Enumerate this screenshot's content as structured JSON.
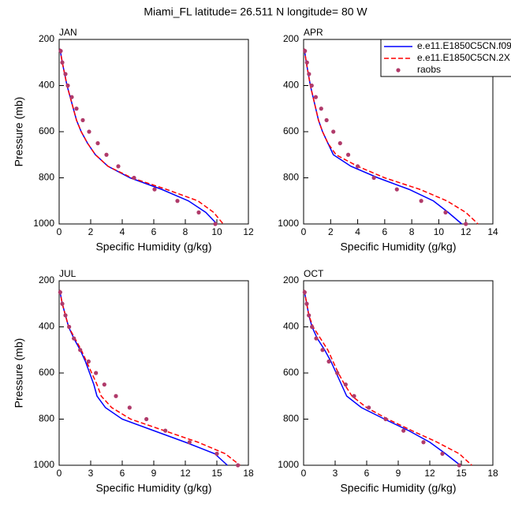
{
  "title": "Miami_FL  latitude= 26.511 N longitude= 80 W",
  "chart_data": [
    {
      "type": "line",
      "title": "JAN",
      "xlabel": "Specific Humidity (g/kg)",
      "ylabel": "Pressure (mb)",
      "xlim": [
        0,
        12
      ],
      "xticks": [
        0,
        2,
        4,
        6,
        8,
        10,
        12
      ],
      "ylim": [
        200,
        1000
      ],
      "y_reversed": true,
      "yticks": [
        200,
        400,
        600,
        800,
        1000
      ],
      "series": [
        {
          "color": "#0000ff",
          "dash": "solid",
          "marker": false,
          "x": [
            0.05,
            0.2,
            0.35,
            0.5,
            0.7,
            0.9,
            1.1,
            1.4,
            1.8,
            2.3,
            3.1,
            4.5,
            6.5,
            8.2,
            9.3,
            10.0
          ],
          "y": [
            240,
            300,
            350,
            400,
            450,
            500,
            550,
            600,
            650,
            700,
            750,
            800,
            850,
            900,
            950,
            1000
          ]
        },
        {
          "color": "#ff0000",
          "dash": "dashed",
          "marker": false,
          "x": [
            0.05,
            0.2,
            0.35,
            0.5,
            0.7,
            0.9,
            1.1,
            1.4,
            1.8,
            2.3,
            3.1,
            4.6,
            6.8,
            8.8,
            9.8,
            10.4
          ],
          "y": [
            240,
            300,
            350,
            400,
            450,
            500,
            550,
            600,
            650,
            700,
            750,
            800,
            850,
            900,
            950,
            1000
          ]
        },
        {
          "color": "#b03a6a",
          "dash": "none",
          "marker": true,
          "x": [
            0.1,
            0.2,
            0.4,
            0.55,
            0.8,
            1.1,
            1.5,
            1.9,
            2.45,
            3.0,
            3.75,
            4.75,
            6.05,
            7.5,
            8.85,
            9.9
          ],
          "y": [
            250,
            300,
            350,
            400,
            450,
            500,
            550,
            600,
            650,
            700,
            750,
            800,
            850,
            900,
            950,
            1000
          ]
        }
      ]
    },
    {
      "type": "line",
      "title": "APR",
      "xlabel": "Specific Humidity (g/kg)",
      "xlim": [
        0,
        14
      ],
      "xticks": [
        0,
        2,
        4,
        6,
        8,
        10,
        12,
        14
      ],
      "ylim": [
        200,
        1000
      ],
      "y_reversed": true,
      "yticks": [
        200,
        400,
        600,
        800,
        1000
      ],
      "legend": "upper right",
      "series": [
        {
          "name": "e.e11.E1850C5CN.f09",
          "color": "#0000ff",
          "dash": "solid",
          "marker": false,
          "x": [
            0.05,
            0.2,
            0.35,
            0.5,
            0.7,
            0.9,
            1.1,
            1.4,
            1.8,
            2.2,
            3.5,
            5.5,
            7.8,
            9.6,
            10.7,
            11.7
          ],
          "y": [
            240,
            300,
            350,
            400,
            450,
            500,
            550,
            600,
            650,
            700,
            750,
            800,
            850,
            900,
            950,
            1000
          ]
        },
        {
          "name": "e.e11.E1850C5CN.2X",
          "color": "#ff0000",
          "dash": "dashed",
          "marker": false,
          "x": [
            0.05,
            0.2,
            0.35,
            0.5,
            0.7,
            0.9,
            1.1,
            1.4,
            1.8,
            2.4,
            4.0,
            6.0,
            8.6,
            10.6,
            12.0,
            12.9
          ],
          "y": [
            240,
            300,
            350,
            400,
            450,
            500,
            550,
            600,
            650,
            700,
            750,
            800,
            850,
            900,
            950,
            1000
          ]
        },
        {
          "name": "raobs",
          "color": "#b03a6a",
          "dash": "none",
          "marker": true,
          "x": [
            0.1,
            0.25,
            0.4,
            0.6,
            0.9,
            1.3,
            1.7,
            2.2,
            2.7,
            3.3,
            4.0,
            5.2,
            6.9,
            8.7,
            10.5,
            12.0
          ],
          "y": [
            250,
            300,
            350,
            400,
            450,
            500,
            550,
            600,
            650,
            700,
            750,
            800,
            850,
            900,
            950,
            1000
          ]
        }
      ]
    },
    {
      "type": "line",
      "title": "JUL",
      "xlabel": "Specific Humidity (g/kg)",
      "ylabel": "Pressure (mb)",
      "xlim": [
        0,
        18
      ],
      "xticks": [
        0,
        3,
        6,
        9,
        12,
        15,
        18
      ],
      "ylim": [
        200,
        1000
      ],
      "y_reversed": true,
      "yticks": [
        200,
        400,
        600,
        800,
        1000
      ],
      "series": [
        {
          "color": "#0000ff",
          "dash": "solid",
          "marker": false,
          "x": [
            0.05,
            0.3,
            0.6,
            0.9,
            1.4,
            2.0,
            2.5,
            2.9,
            3.3,
            3.6,
            4.4,
            6.0,
            9.0,
            12.0,
            14.8,
            16.0
          ],
          "y": [
            240,
            300,
            350,
            400,
            450,
            500,
            550,
            600,
            650,
            700,
            750,
            800,
            850,
            900,
            950,
            1000
          ]
        },
        {
          "color": "#ff0000",
          "dash": "dashed",
          "marker": false,
          "x": [
            0.05,
            0.3,
            0.6,
            0.9,
            1.5,
            2.1,
            2.6,
            3.1,
            3.6,
            4.0,
            5.0,
            6.8,
            10.0,
            13.2,
            15.8,
            17.2
          ],
          "y": [
            240,
            300,
            350,
            400,
            450,
            500,
            550,
            600,
            650,
            700,
            750,
            800,
            850,
            900,
            950,
            1000
          ]
        },
        {
          "color": "#b03a6a",
          "dash": "none",
          "marker": true,
          "x": [
            0.1,
            0.3,
            0.6,
            0.95,
            1.4,
            2.0,
            2.8,
            3.5,
            4.3,
            5.4,
            6.7,
            8.3,
            10.1,
            12.4,
            15.0,
            17.0
          ],
          "y": [
            250,
            300,
            350,
            400,
            450,
            500,
            550,
            600,
            650,
            700,
            750,
            800,
            850,
            900,
            950,
            1000
          ]
        }
      ]
    },
    {
      "type": "line",
      "title": "OCT",
      "xlabel": "Specific Humidity (g/kg)",
      "xlim": [
        0,
        18
      ],
      "xticks": [
        0,
        3,
        6,
        9,
        12,
        15,
        18
      ],
      "ylim": [
        200,
        1000
      ],
      "y_reversed": true,
      "yticks": [
        200,
        400,
        600,
        800,
        1000
      ],
      "series": [
        {
          "color": "#0000ff",
          "dash": "solid",
          "marker": false,
          "x": [
            0.05,
            0.3,
            0.5,
            0.8,
            1.3,
            2.0,
            2.6,
            3.1,
            3.6,
            4.1,
            5.5,
            7.7,
            10.0,
            12.0,
            13.5,
            14.9
          ],
          "y": [
            240,
            300,
            350,
            400,
            450,
            500,
            550,
            600,
            650,
            700,
            750,
            800,
            850,
            900,
            950,
            1000
          ]
        },
        {
          "color": "#ff0000",
          "dash": "dashed",
          "marker": false,
          "x": [
            0.05,
            0.3,
            0.5,
            0.9,
            1.6,
            2.3,
            2.8,
            3.3,
            3.9,
            4.6,
            6.0,
            8.0,
            10.3,
            12.7,
            14.8,
            16.0
          ],
          "y": [
            240,
            300,
            350,
            400,
            450,
            500,
            550,
            600,
            650,
            700,
            750,
            800,
            850,
            900,
            950,
            1000
          ]
        },
        {
          "color": "#b03a6a",
          "dash": "none",
          "marker": true,
          "x": [
            0.1,
            0.3,
            0.5,
            0.8,
            1.2,
            1.8,
            2.4,
            3.2,
            4.0,
            4.8,
            6.2,
            7.8,
            9.5,
            11.4,
            13.2,
            14.8
          ],
          "y": [
            250,
            300,
            350,
            400,
            450,
            500,
            550,
            600,
            650,
            700,
            750,
            800,
            850,
            900,
            950,
            1000
          ]
        }
      ]
    }
  ]
}
